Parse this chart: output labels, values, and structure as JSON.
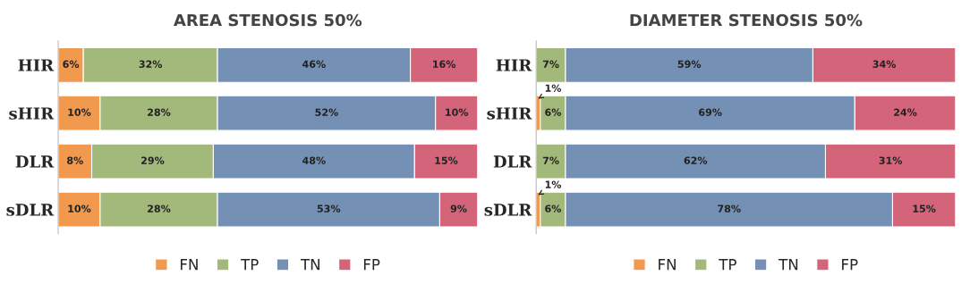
{
  "chart_data": [
    {
      "type": "bar",
      "orientation": "horizontal",
      "stacked": true,
      "title": "AREA STENOSIS 50%",
      "categories": [
        "HIR",
        "sHIR",
        "DLR",
        "sDLR"
      ],
      "legend": "bottom",
      "grid": false,
      "tick_labels": "y",
      "series": [
        {
          "name": "FN",
          "color": "#f0994f",
          "values": [
            6,
            10,
            8,
            10
          ],
          "value_labels": [
            "6%",
            "10%",
            "8%",
            "10%"
          ]
        },
        {
          "name": "TP",
          "color": "#a3b97b",
          "values": [
            32,
            28,
            29,
            28
          ],
          "value_labels": [
            "32%",
            "28%",
            "29%",
            "28%"
          ]
        },
        {
          "name": "TN",
          "color": "#7490b5",
          "values": [
            46,
            52,
            48,
            53
          ],
          "value_labels": [
            "46%",
            "52%",
            "48%",
            "53%"
          ]
        },
        {
          "name": "FP",
          "color": "#d3647a",
          "values": [
            16,
            10,
            15,
            9
          ],
          "value_labels": [
            "16%",
            "10%",
            "15%",
            "9%"
          ]
        }
      ]
    },
    {
      "type": "bar",
      "orientation": "horizontal",
      "stacked": true,
      "title": "DIAMETER STENOSIS 50%",
      "categories": [
        "HIR",
        "sHIR",
        "DLR",
        "sDLR"
      ],
      "legend": "bottom",
      "grid": false,
      "tick_labels": "y",
      "series": [
        {
          "name": "FN",
          "color": "#f0994f",
          "values": [
            0,
            1,
            0,
            1
          ],
          "value_labels": [
            null,
            "1%",
            null,
            "1%"
          ]
        },
        {
          "name": "TP",
          "color": "#a3b97b",
          "values": [
            7,
            6,
            7,
            6
          ],
          "value_labels": [
            "7%",
            "6%",
            "7%",
            "6%"
          ]
        },
        {
          "name": "TN",
          "color": "#7490b5",
          "values": [
            59,
            69,
            62,
            78
          ],
          "value_labels": [
            "59%",
            "69%",
            "62%",
            "78%"
          ]
        },
        {
          "name": "FP",
          "color": "#d3647a",
          "values": [
            34,
            24,
            31,
            15
          ],
          "value_labels": [
            "34%",
            "24%",
            "31%",
            "15%"
          ]
        }
      ]
    }
  ]
}
